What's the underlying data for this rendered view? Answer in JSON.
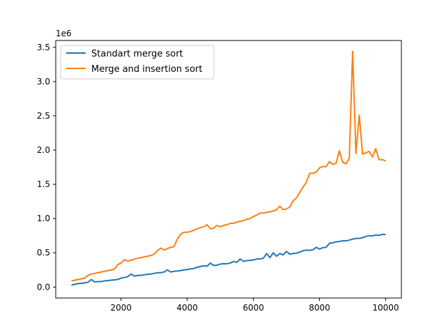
{
  "chart_data": {
    "type": "line",
    "title": "",
    "xlabel": "",
    "ylabel": "",
    "y_multiplier_label": "1e6",
    "xlim": [
      25,
      10475
    ],
    "ylim": [
      -0.16,
      3.6
    ],
    "x_ticks": [
      2000,
      4000,
      6000,
      8000,
      10000
    ],
    "x_tick_labels": [
      "2000",
      "4000",
      "6000",
      "8000",
      "10000"
    ],
    "y_ticks": [
      0.0,
      0.5,
      1.0,
      1.5,
      2.0,
      2.5,
      3.0,
      3.5
    ],
    "y_tick_labels": [
      "0.0",
      "0.5",
      "1.0",
      "1.5",
      "2.0",
      "2.5",
      "3.0",
      "3.5"
    ],
    "grid": false,
    "legend_position": "top-left",
    "x": [
      500,
      600,
      700,
      800,
      900,
      1000,
      1100,
      1200,
      1300,
      1400,
      1500,
      1600,
      1700,
      1800,
      1900,
      2000,
      2100,
      2200,
      2300,
      2400,
      2500,
      2600,
      2700,
      2800,
      2900,
      3000,
      3100,
      3200,
      3300,
      3400,
      3500,
      3600,
      3700,
      3800,
      3900,
      4000,
      4100,
      4200,
      4300,
      4400,
      4500,
      4600,
      4700,
      4800,
      4900,
      5000,
      5100,
      5200,
      5300,
      5400,
      5500,
      5600,
      5700,
      5800,
      5900,
      6000,
      6100,
      6200,
      6300,
      6400,
      6500,
      6600,
      6700,
      6800,
      6900,
      7000,
      7100,
      7200,
      7300,
      7400,
      7500,
      7600,
      7700,
      7800,
      7900,
      8000,
      8100,
      8200,
      8300,
      8400,
      8500,
      8600,
      8700,
      8800,
      8900,
      9000,
      9100,
      9200,
      9300,
      9400,
      9500,
      9600,
      9700,
      9800,
      9900,
      10000
    ],
    "series": [
      {
        "name": "Standart merge sort",
        "color": "#1f77b4",
        "values": [
          0.03,
          0.04,
          0.05,
          0.055,
          0.06,
          0.07,
          0.11,
          0.075,
          0.08,
          0.08,
          0.09,
          0.095,
          0.1,
          0.105,
          0.11,
          0.13,
          0.14,
          0.15,
          0.19,
          0.16,
          0.17,
          0.17,
          0.18,
          0.185,
          0.19,
          0.2,
          0.21,
          0.21,
          0.22,
          0.25,
          0.22,
          0.23,
          0.235,
          0.24,
          0.25,
          0.255,
          0.265,
          0.27,
          0.29,
          0.3,
          0.31,
          0.305,
          0.35,
          0.315,
          0.32,
          0.335,
          0.34,
          0.34,
          0.35,
          0.375,
          0.36,
          0.41,
          0.375,
          0.385,
          0.39,
          0.395,
          0.41,
          0.41,
          0.42,
          0.49,
          0.43,
          0.5,
          0.45,
          0.49,
          0.47,
          0.52,
          0.48,
          0.49,
          0.495,
          0.51,
          0.53,
          0.54,
          0.535,
          0.545,
          0.58,
          0.555,
          0.575,
          0.58,
          0.64,
          0.645,
          0.66,
          0.665,
          0.675,
          0.675,
          0.685,
          0.7,
          0.71,
          0.71,
          0.72,
          0.74,
          0.75,
          0.745,
          0.76,
          0.755,
          0.77,
          0.765
        ]
      },
      {
        "name": "Merge and insertion sort",
        "color": "#ff7f0e",
        "values": [
          0.09,
          0.1,
          0.11,
          0.12,
          0.13,
          0.17,
          0.19,
          0.2,
          0.21,
          0.22,
          0.23,
          0.24,
          0.25,
          0.26,
          0.33,
          0.35,
          0.4,
          0.38,
          0.39,
          0.41,
          0.42,
          0.43,
          0.44,
          0.45,
          0.46,
          0.48,
          0.53,
          0.57,
          0.54,
          0.56,
          0.58,
          0.59,
          0.7,
          0.77,
          0.8,
          0.8,
          0.81,
          0.83,
          0.85,
          0.87,
          0.88,
          0.91,
          0.85,
          0.86,
          0.9,
          0.88,
          0.9,
          0.91,
          0.93,
          0.93,
          0.95,
          0.96,
          0.97,
          0.99,
          1.0,
          1.03,
          1.05,
          1.08,
          1.08,
          1.09,
          1.1,
          1.11,
          1.13,
          1.18,
          1.13,
          1.14,
          1.17,
          1.26,
          1.3,
          1.38,
          1.46,
          1.53,
          1.66,
          1.66,
          1.68,
          1.74,
          1.76,
          1.76,
          1.83,
          1.79,
          1.81,
          1.99,
          1.82,
          1.8,
          1.88,
          3.44,
          1.95,
          2.51,
          1.94,
          1.96,
          1.98,
          1.9,
          2.02,
          1.86,
          1.86,
          1.84
        ]
      }
    ]
  }
}
